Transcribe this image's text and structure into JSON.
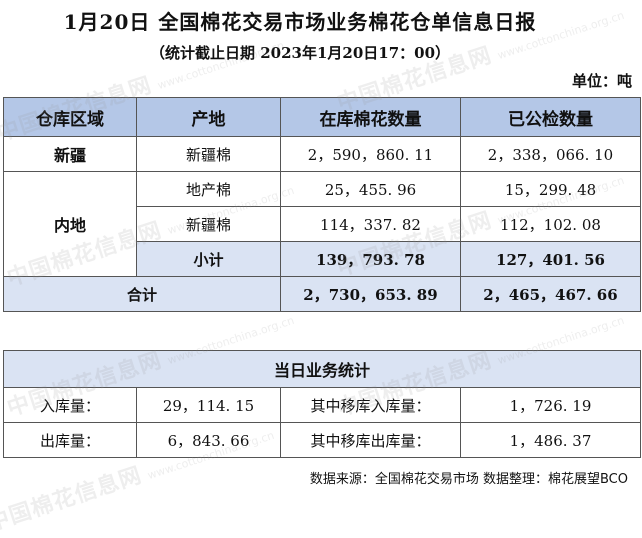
{
  "header": {
    "title": "1月20日 全国棉花交易市场业务棉花仓单信息日报",
    "subtitle": "（统计截止日期 2023年1月20日17：00）",
    "unit": "单位：吨"
  },
  "main_table": {
    "columns": [
      "仓库区域",
      "产地",
      "在库棉花数量",
      "已公检数量"
    ],
    "xinjiang": {
      "region": "新疆",
      "origin": "新疆棉",
      "stock": "2，590，860. 11",
      "inspected": "2，338，066. 10"
    },
    "inland": {
      "region": "内地",
      "rows": [
        {
          "origin": "地产棉",
          "stock": "25，455. 96",
          "inspected": "15，299. 48"
        },
        {
          "origin": "新疆棉",
          "stock": "114，337. 82",
          "inspected": "112，102. 08"
        }
      ],
      "subtotal": {
        "label": "小计",
        "stock": "139，793. 78",
        "inspected": "127，401. 56"
      }
    },
    "total": {
      "label": "合计",
      "stock": "2，730，653. 89",
      "inspected": "2，465，467. 66"
    }
  },
  "daily_table": {
    "title": "当日业务统计",
    "rows": [
      {
        "label1": "入库量：",
        "value1": "29，114. 15",
        "label2": "其中移库入库量：",
        "value2": "1，726. 19"
      },
      {
        "label1": "出库量：",
        "value1": "6，843. 66",
        "label2": "其中移库出库量：",
        "value2": "1，486. 37"
      }
    ]
  },
  "footer": {
    "source": "数据来源：全国棉花交易市场 数据整理：棉花展望BCO"
  },
  "watermark": {
    "text_cn": "中国棉花信息网",
    "text_en": "www.cottonchina.org.cn"
  }
}
